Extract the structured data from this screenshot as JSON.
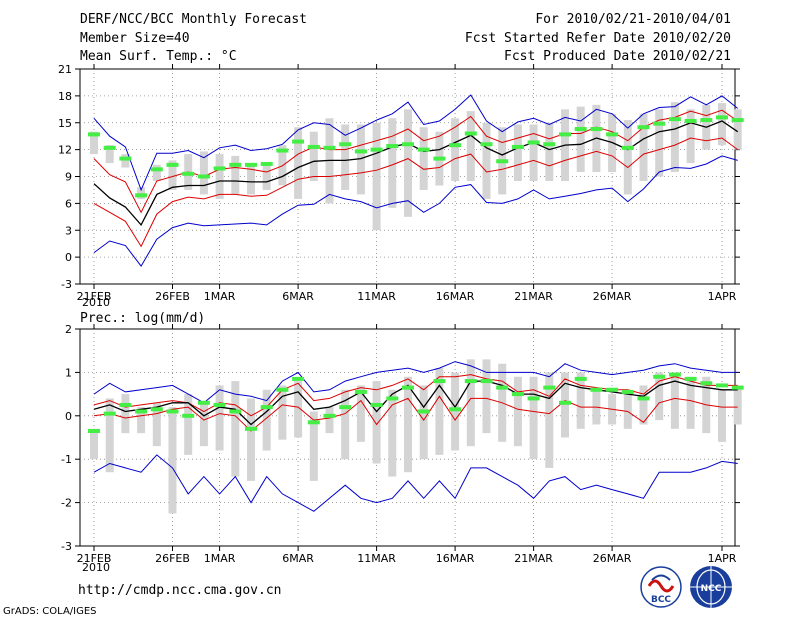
{
  "header": {
    "title": "DERF/NCC/BCC Monthly Forecast",
    "member_size": "Member Size=40",
    "variable": "Mean Surf. Temp.: °C",
    "period": "For 2010/02/21-2010/04/01",
    "started": "Fcst Started Refer Date 2010/02/20",
    "produced": "Fcst Produced Date 2010/02/21"
  },
  "footer": {
    "url": "http://cmdp.ncc.cma.gov.cn",
    "grads": "GrADS: COLA/IGES",
    "logo_bcc": "BCC",
    "logo_ncc": "NCC"
  },
  "colors": {
    "box": "#d4d4d4",
    "obs": "#44ee44",
    "envelope": "#0000cc",
    "spread": "#dd0000",
    "mean": "#000000"
  },
  "chart_data": [
    {
      "type": "line",
      "title": "Mean Surf. Temp.: °C",
      "x_tick_labels": [
        "21FEB",
        "26FEB",
        "1MAR",
        "6MAR",
        "11MAR",
        "16MAR",
        "21MAR",
        "26MAR",
        "1APR"
      ],
      "x_tick_days": [
        0,
        5,
        8,
        13,
        18,
        23,
        28,
        33,
        40
      ],
      "x_year_label": "2010",
      "ylim": [
        -3,
        21
      ],
      "y_ticks": [
        -3,
        0,
        3,
        6,
        9,
        12,
        15,
        18,
        21
      ],
      "series": [
        {
          "name": "max",
          "values": [
            0.5,
            1.8,
            1.3,
            -1.0,
            2.0,
            3.3,
            3.8,
            3.5,
            3.6,
            3.7,
            3.8,
            3.6,
            4.8,
            5.8,
            5.9,
            7.0,
            6.5,
            6.2,
            5.5,
            6.0,
            6.3,
            5.0,
            6.0,
            7.8,
            8.1,
            6.1,
            6.0,
            6.5,
            7.5,
            6.5,
            6.8,
            7.1,
            7.5,
            7.7,
            6.2,
            7.6,
            9.5,
            10.0,
            9.9,
            10.4,
            11.3,
            10.8
          ]
        },
        {
          "name": "upper_envelope",
          "values": [
            15.5,
            13.5,
            12.3,
            7.5,
            11.6,
            11.6,
            11.9,
            11.1,
            12.2,
            12.5,
            11.9,
            12.1,
            12.6,
            14.2,
            15.0,
            14.8,
            13.6,
            14.4,
            15.3,
            16.0,
            17.3,
            14.8,
            15.2,
            16.5,
            18.1,
            15.2,
            14.0,
            15.1,
            15.5,
            14.8,
            15.6,
            15.2,
            16.5,
            16.0,
            14.4,
            16.0,
            16.7,
            16.8,
            17.9,
            17.0,
            18.0,
            16.6
          ]
        },
        {
          "name": "spread_high",
          "values": [
            11.0,
            9.2,
            8.4,
            5.0,
            8.5,
            9.0,
            9.5,
            9.0,
            9.8,
            10.0,
            9.8,
            9.5,
            10.2,
            11.5,
            12.3,
            12.0,
            12.0,
            12.5,
            13.0,
            13.5,
            14.3,
            13.0,
            13.5,
            14.5,
            15.7,
            13.5,
            12.8,
            13.3,
            13.8,
            13.2,
            13.8,
            13.8,
            14.5,
            14.0,
            13.0,
            14.5,
            15.3,
            15.6,
            16.3,
            15.8,
            16.4,
            15.2
          ]
        },
        {
          "name": "ensemble_mean",
          "values": [
            8.2,
            6.6,
            5.6,
            3.6,
            7.0,
            7.8,
            8.0,
            8.0,
            8.5,
            8.5,
            8.4,
            8.4,
            9.0,
            10.0,
            10.7,
            10.8,
            10.8,
            11.0,
            11.6,
            12.3,
            12.7,
            11.8,
            12.0,
            12.8,
            13.6,
            12.2,
            11.4,
            12.2,
            12.8,
            12.0,
            12.5,
            12.6,
            13.3,
            12.8,
            12.0,
            13.2,
            14.0,
            14.3,
            15.0,
            14.5,
            15.2,
            14.0
          ]
        },
        {
          "name": "spread_low",
          "values": [
            6.0,
            5.0,
            4.0,
            1.2,
            4.8,
            6.2,
            6.7,
            6.5,
            7.0,
            7.0,
            6.8,
            6.9,
            7.8,
            8.7,
            9.0,
            9.0,
            9.2,
            9.4,
            9.7,
            10.3,
            11.0,
            9.8,
            10.0,
            11.0,
            11.5,
            9.5,
            9.8,
            10.3,
            10.8,
            10.2,
            10.8,
            11.3,
            11.8,
            11.3,
            10.0,
            11.5,
            12.0,
            12.5,
            13.3,
            13.0,
            13.3,
            12.0
          ]
        },
        {
          "name": "obs",
          "values": [
            13.7,
            12.2,
            11.0,
            6.9,
            9.8,
            10.3,
            9.3,
            9.0,
            9.9,
            10.3,
            10.3,
            10.4,
            11.9,
            12.9,
            12.3,
            12.2,
            12.6,
            11.8,
            12.0,
            12.4,
            12.6,
            12.0,
            11.0,
            12.5,
            13.8,
            12.6,
            10.7,
            12.3,
            12.8,
            12.6,
            13.7,
            14.3,
            14.3,
            13.7,
            12.2,
            14.5,
            14.9,
            15.4,
            15.2,
            15.3,
            15.6,
            15.3
          ]
        },
        {
          "name": "box_high",
          "values": [
            14.0,
            12.5,
            11.5,
            7.8,
            10.3,
            10.8,
            11.5,
            11.8,
            11.5,
            11.3,
            10.5,
            10.5,
            12.5,
            14.5,
            14.0,
            15.5,
            14.8,
            14.8,
            15.0,
            15.5,
            16.5,
            14.5,
            14.0,
            15.5,
            16.3,
            15.0,
            14.5,
            14.8,
            14.8,
            15.0,
            16.5,
            16.8,
            17.0,
            16.0,
            15.3,
            16.0,
            16.5,
            17.3,
            16.5,
            17.0,
            17.2,
            16.5
          ]
        },
        {
          "name": "box_low",
          "values": [
            11.5,
            10.5,
            10.0,
            6.5,
            8.5,
            7.5,
            7.5,
            7.0,
            6.5,
            7.0,
            7.0,
            7.5,
            8.0,
            6.5,
            8.5,
            6.0,
            7.5,
            7.0,
            3.0,
            5.5,
            4.5,
            7.5,
            8.0,
            8.5,
            8.5,
            6.5,
            7.0,
            8.5,
            8.5,
            8.5,
            8.5,
            9.5,
            9.5,
            9.5,
            7.0,
            8.5,
            9.0,
            9.5,
            10.5,
            12.0,
            12.5,
            12.0
          ]
        }
      ]
    },
    {
      "type": "line",
      "title": "Prec.: log(mm/d)",
      "x_tick_labels": [
        "21FEB",
        "26FEB",
        "1MAR",
        "6MAR",
        "11MAR",
        "16MAR",
        "21MAR",
        "26MAR",
        "1APR"
      ],
      "x_tick_days": [
        0,
        5,
        8,
        13,
        18,
        23,
        28,
        33,
        40
      ],
      "x_year_label": "2010",
      "ylim": [
        -3,
        2
      ],
      "y_ticks": [
        -3,
        -2,
        -1,
        0,
        1,
        2
      ],
      "series": [
        {
          "name": "min",
          "values": [
            -1.3,
            -1.1,
            -1.2,
            -1.3,
            -0.9,
            -1.2,
            -1.8,
            -1.4,
            -1.8,
            -1.4,
            -2.0,
            -1.4,
            -1.8,
            -2.0,
            -2.2,
            -1.9,
            -1.6,
            -1.9,
            -2.0,
            -1.9,
            -1.5,
            -1.9,
            -1.5,
            -1.9,
            -1.2,
            -1.2,
            -1.4,
            -1.6,
            -1.9,
            -1.5,
            -1.4,
            -1.7,
            -1.6,
            -1.7,
            -1.8,
            -1.9,
            -1.3,
            -1.3,
            -1.3,
            -1.2,
            -1.05,
            -1.1
          ]
        },
        {
          "name": "upper_envelope",
          "values": [
            0.5,
            0.75,
            0.55,
            0.6,
            0.65,
            0.7,
            0.5,
            0.3,
            0.6,
            0.5,
            0.45,
            0.35,
            0.8,
            1.0,
            0.55,
            0.6,
            0.8,
            0.9,
            1.0,
            1.05,
            1.1,
            1.0,
            1.1,
            1.25,
            1.15,
            1.0,
            1.0,
            1.0,
            1.0,
            0.9,
            1.2,
            1.05,
            1.0,
            0.95,
            1.0,
            1.05,
            1.15,
            1.2,
            1.1,
            1.05,
            1.0,
            1.0
          ]
        },
        {
          "name": "spread_high",
          "values": [
            0.25,
            0.35,
            0.2,
            0.25,
            0.3,
            0.35,
            0.3,
            0.1,
            0.3,
            0.25,
            0.0,
            0.2,
            0.6,
            0.75,
            0.35,
            0.4,
            0.55,
            0.65,
            0.6,
            0.7,
            0.85,
            0.6,
            0.9,
            0.9,
            0.95,
            0.85,
            0.8,
            0.55,
            0.6,
            0.45,
            0.85,
            0.7,
            0.65,
            0.6,
            0.6,
            0.5,
            0.8,
            0.9,
            0.8,
            0.7,
            0.7,
            0.7
          ]
        },
        {
          "name": "ensemble_mean",
          "values": [
            0.15,
            0.25,
            0.1,
            0.15,
            0.2,
            0.3,
            0.3,
            0.0,
            0.2,
            0.15,
            -0.2,
            0.1,
            0.45,
            0.55,
            0.15,
            0.2,
            0.35,
            0.55,
            0.1,
            0.5,
            0.7,
            0.2,
            0.7,
            0.2,
            0.8,
            0.8,
            0.7,
            0.5,
            0.5,
            0.4,
            0.75,
            0.65,
            0.6,
            0.55,
            0.5,
            0.45,
            0.7,
            0.8,
            0.7,
            0.65,
            0.6,
            0.6
          ]
        },
        {
          "name": "spread_low",
          "values": [
            0.0,
            0.05,
            -0.05,
            0.0,
            0.05,
            0.15,
            0.2,
            -0.1,
            0.05,
            0.0,
            -0.35,
            -0.05,
            0.25,
            0.2,
            -0.1,
            -0.05,
            0.05,
            0.35,
            -0.2,
            0.25,
            0.4,
            -0.1,
            0.45,
            -0.1,
            0.4,
            0.4,
            0.3,
            0.15,
            0.1,
            0.05,
            0.35,
            0.2,
            0.2,
            0.15,
            0.1,
            -0.15,
            0.3,
            0.4,
            0.35,
            0.25,
            0.2,
            0.2
          ]
        },
        {
          "name": "obs",
          "values": [
            -0.35,
            0.05,
            0.25,
            0.1,
            0.15,
            0.1,
            0.0,
            0.3,
            0.25,
            0.1,
            -0.3,
            0.2,
            0.6,
            0.85,
            -0.15,
            0.0,
            0.2,
            0.55,
            0.25,
            0.4,
            0.65,
            0.1,
            0.8,
            0.15,
            0.8,
            0.8,
            0.65,
            0.5,
            0.4,
            0.65,
            0.3,
            0.85,
            0.6,
            0.6,
            0.55,
            0.4,
            0.9,
            0.95,
            0.85,
            0.75,
            0.7,
            0.65
          ]
        },
        {
          "name": "box_high",
          "values": [
            -0.3,
            0.4,
            0.5,
            0.2,
            0.3,
            0.2,
            0.5,
            0.3,
            0.7,
            0.8,
            0.4,
            0.6,
            0.7,
            0.8,
            0.1,
            0.2,
            0.6,
            0.7,
            0.8,
            0.6,
            0.9,
            0.7,
            1.1,
            1.0,
            1.3,
            1.3,
            1.2,
            0.9,
            0.9,
            1.0,
            1.0,
            1.0,
            0.6,
            0.5,
            0.6,
            0.7,
            1.0,
            1.0,
            0.9,
            0.9,
            0.6,
            0.7
          ]
        },
        {
          "name": "box_low",
          "values": [
            -1.0,
            -1.3,
            -0.4,
            -0.4,
            -0.7,
            -2.25,
            -0.9,
            -0.7,
            -0.8,
            -1.4,
            -1.5,
            -0.8,
            -0.55,
            -0.5,
            -1.5,
            -0.4,
            -1.0,
            -0.6,
            -1.1,
            -1.4,
            -1.3,
            -1.0,
            -0.9,
            -0.8,
            -0.7,
            -0.4,
            -0.6,
            -0.7,
            -1.0,
            -1.2,
            -0.5,
            -0.3,
            -0.2,
            -0.2,
            -0.3,
            -0.2,
            -0.1,
            -0.3,
            -0.3,
            -0.4,
            -0.6,
            -0.2
          ]
        }
      ]
    }
  ]
}
